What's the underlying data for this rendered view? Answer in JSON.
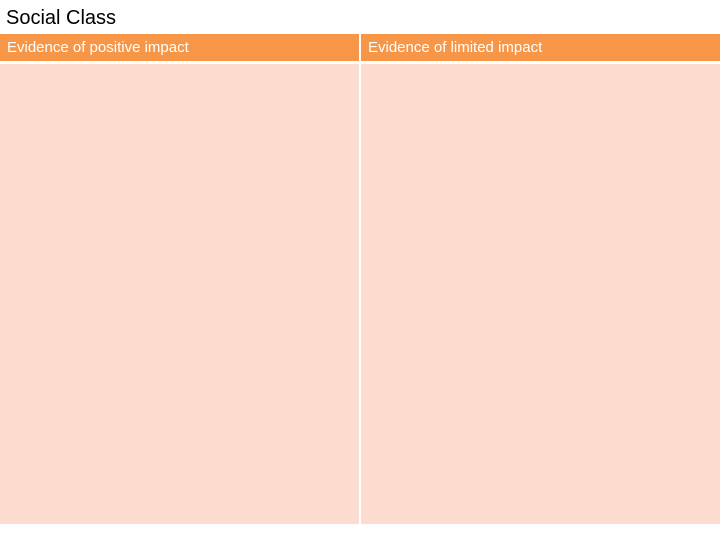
{
  "title": "Social Class",
  "table": {
    "columns": [
      {
        "header": "Evidence of positive impact"
      },
      {
        "header": "Evidence of limited impact"
      }
    ]
  },
  "colors": {
    "header_bg": "#f79646",
    "cell_bg": "#fbdccf",
    "header_text": "#ffffff",
    "title_text": "#000000"
  }
}
